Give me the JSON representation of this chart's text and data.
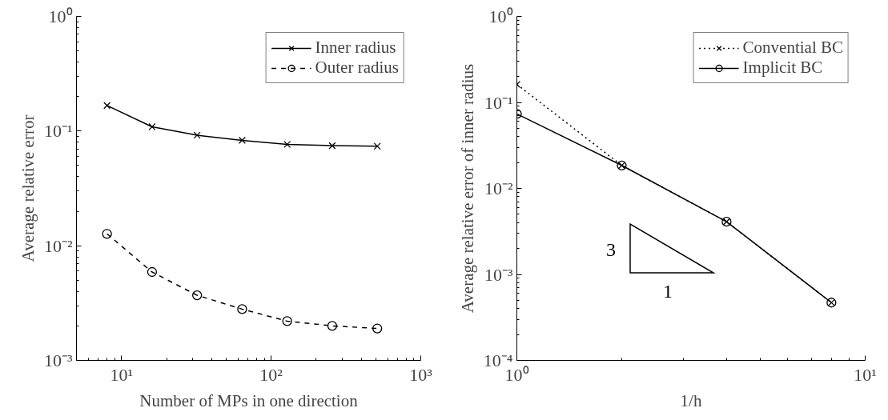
{
  "chart_data": [
    {
      "type": "line",
      "xlabel": "Number of MPs in one direction",
      "ylabel": "Average relative error",
      "log": "xy",
      "grid": false,
      "legend": "top right",
      "x": [
        8,
        16,
        32,
        64,
        128,
        256,
        512
      ],
      "xlim": [
        5,
        1000
      ],
      "ylim": [
        0.001,
        1
      ],
      "xticks": [
        {
          "value": 10,
          "label": "10¹"
        },
        {
          "value": 100,
          "label": "10²"
        },
        {
          "value": 1000,
          "label": "10³"
        }
      ],
      "yticks": [
        {
          "value": 0.001,
          "label": "10⁻³"
        },
        {
          "value": 0.01,
          "label": "10⁻²"
        },
        {
          "value": 0.1,
          "label": "10⁻¹"
        },
        {
          "value": 1,
          "label": "10⁰"
        }
      ],
      "series": [
        {
          "name": "Inner radius",
          "color": "#000000",
          "marker": "cross",
          "line_style": "solid",
          "values": [
            0.167,
            0.109,
            0.092,
            0.083,
            0.0765,
            0.0746,
            0.0738
          ]
        },
        {
          "name": "Outer radius",
          "color": "#000000",
          "marker": "circle",
          "line_style": "dashed",
          "values": [
            0.0127,
            0.0059,
            0.0037,
            0.0028,
            0.0022,
            0.002,
            0.0019
          ]
        }
      ]
    },
    {
      "type": "line",
      "xlabel": "1/h",
      "ylabel": "Average relative error of inner radius",
      "log": "xy",
      "grid": false,
      "legend": "top right",
      "x": [
        1,
        2,
        4,
        8
      ],
      "xlim": [
        1,
        10
      ],
      "ylim": [
        0.0001,
        1
      ],
      "xticks": [
        {
          "value": 1,
          "label": "10⁰"
        },
        {
          "value": 10,
          "label": "10¹"
        }
      ],
      "yticks": [
        {
          "value": 0.0001,
          "label": "10⁻⁴"
        },
        {
          "value": 0.001,
          "label": "10⁻³"
        },
        {
          "value": 0.01,
          "label": "10⁻²"
        },
        {
          "value": 0.1,
          "label": "10⁻¹"
        },
        {
          "value": 1,
          "label": "10⁰"
        }
      ],
      "series": [
        {
          "name": "Convential BC",
          "color": "#000000",
          "marker": "cross",
          "line_style": "dotted",
          "values": [
            0.162,
            0.0185,
            0.0041,
            0.00047
          ]
        },
        {
          "name": "Implicit BC",
          "color": "#000000",
          "marker": "circle",
          "line_style": "solid",
          "values": [
            0.0736,
            0.0185,
            0.0041,
            0.00047
          ]
        }
      ],
      "annotations": [
        "3",
        "1"
      ]
    }
  ]
}
